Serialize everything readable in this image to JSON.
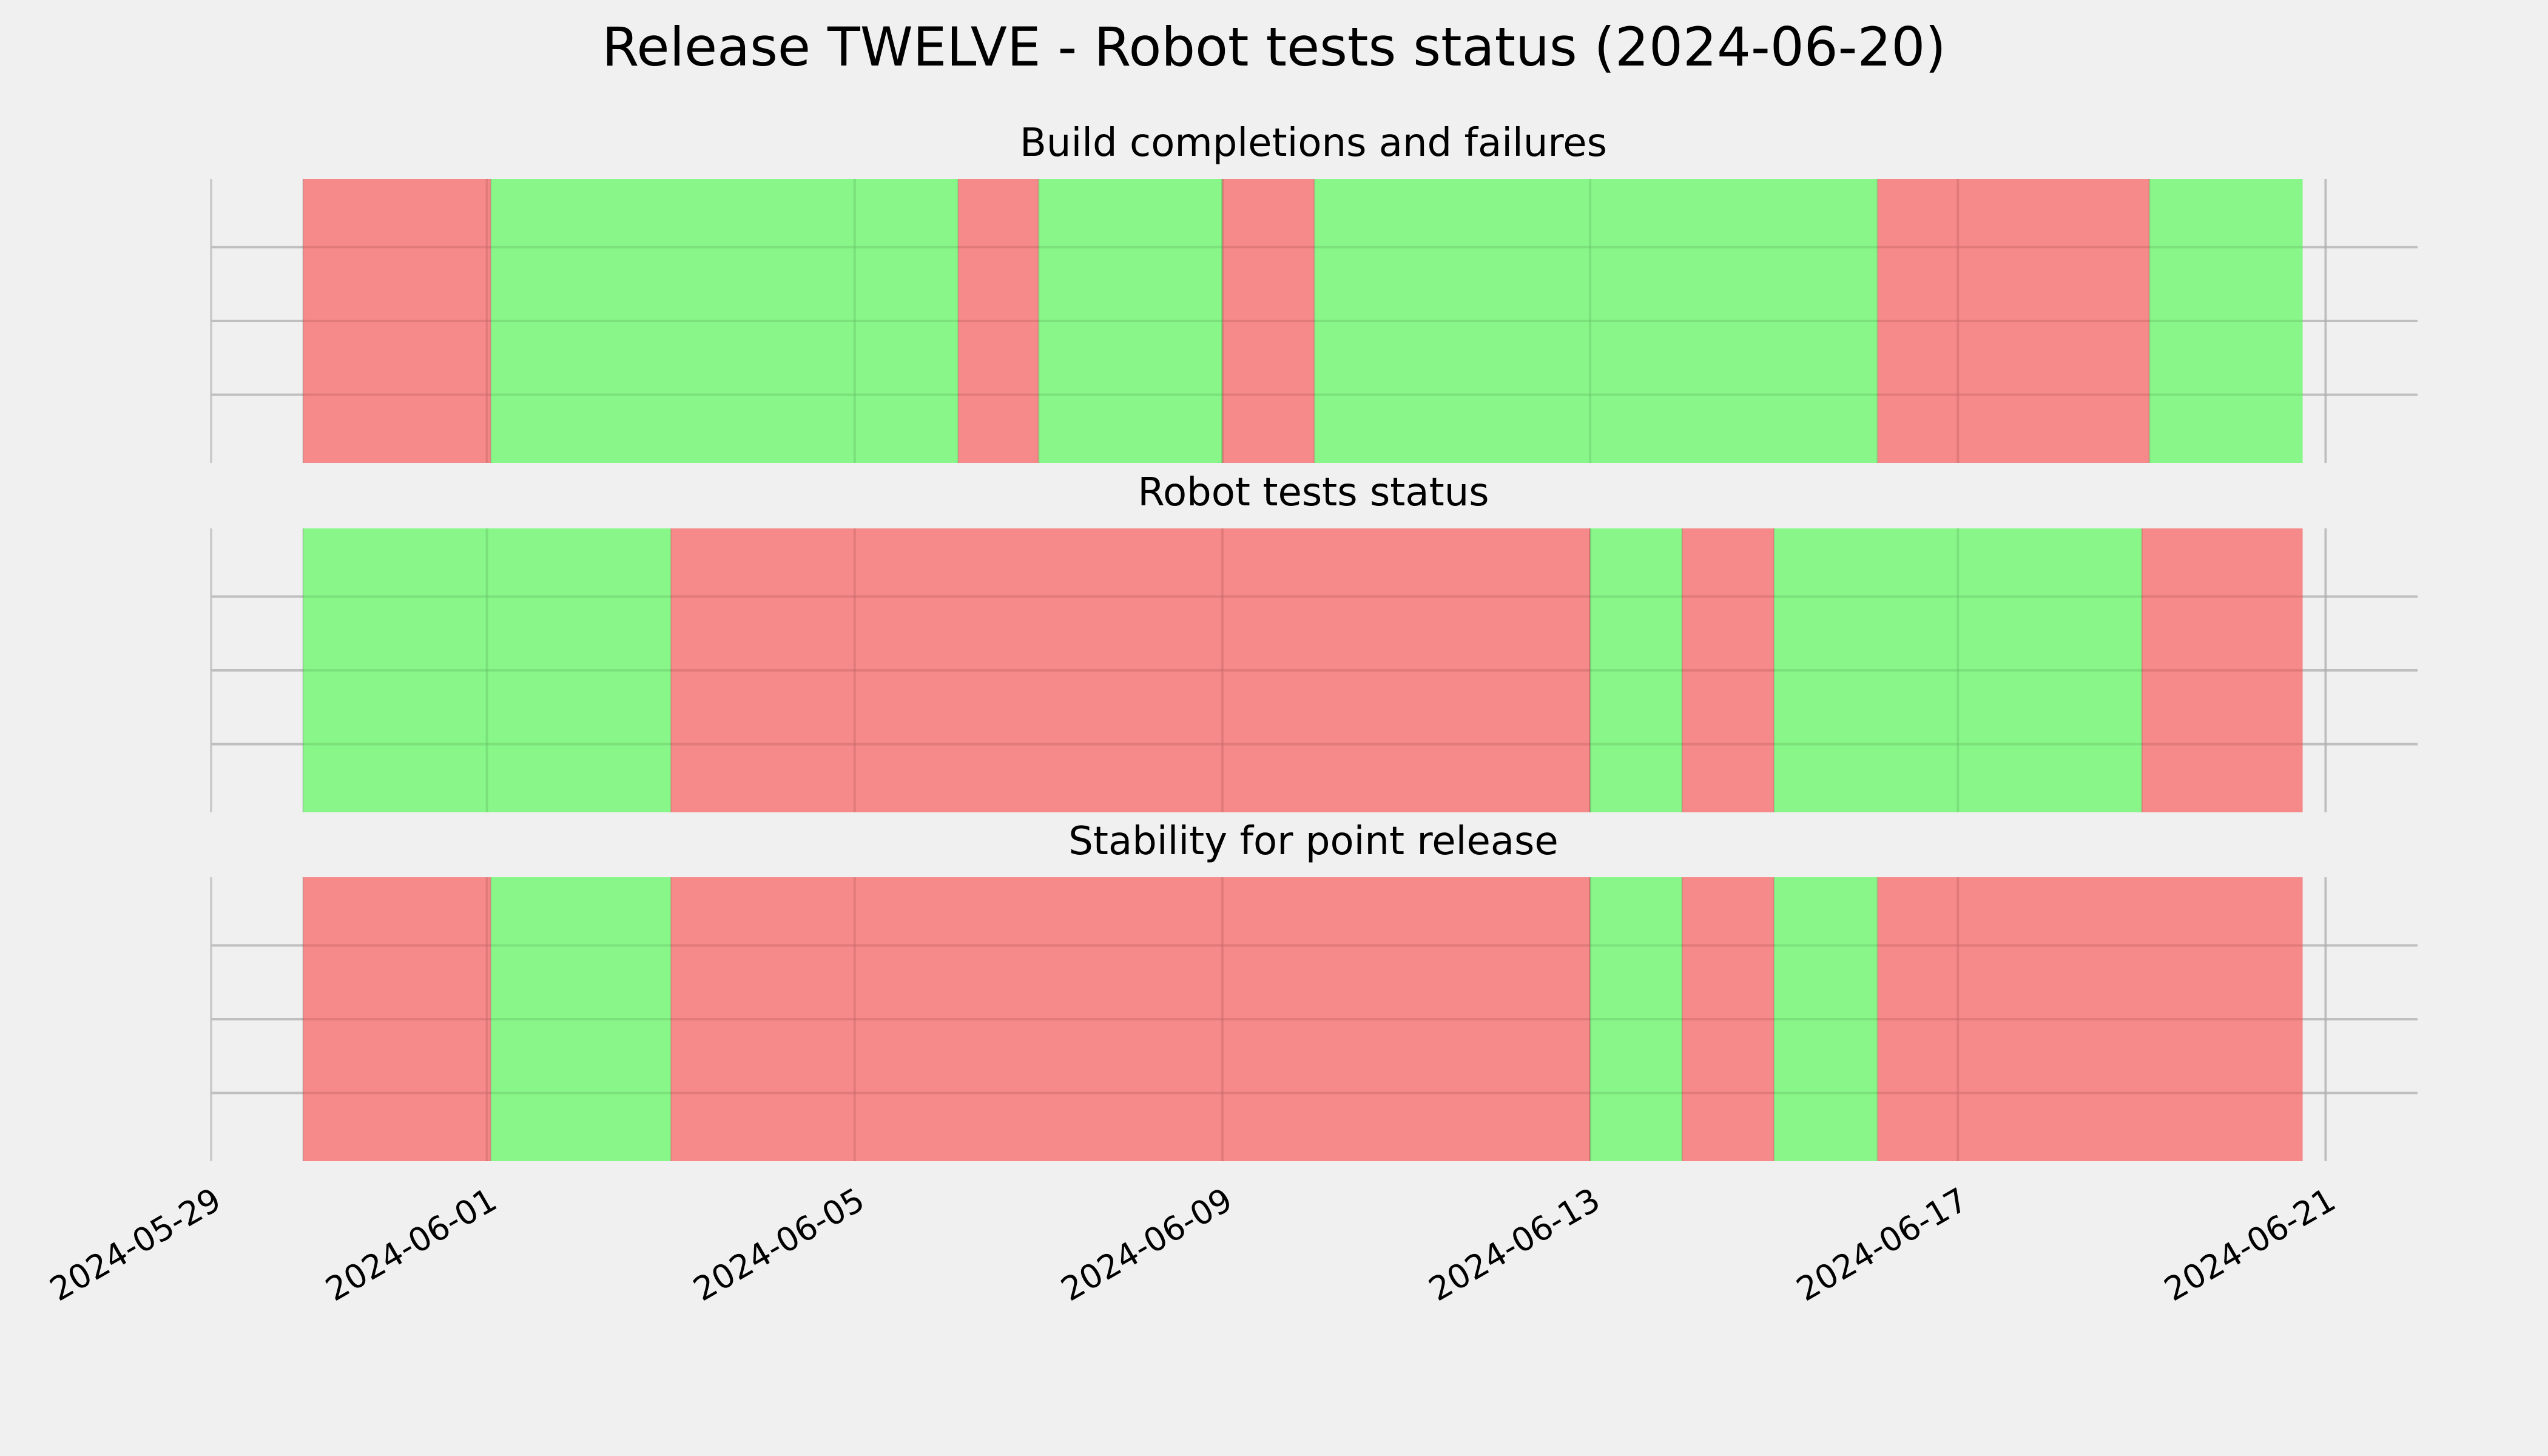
{
  "chart_data": {
    "type": "timeline",
    "title": "Release TWELVE - Robot tests status (2024-06-20)",
    "colors": {
      "pass": "#77f777",
      "fail": "#f77777",
      "background": "#f0f0f0",
      "grid": "#cbcbcb"
    },
    "xlim": [
      "2024-05-29",
      "2024-06-22"
    ],
    "xticks": [
      "2024-05-29",
      "2024-06-01",
      "2024-06-05",
      "2024-06-09",
      "2024-06-13",
      "2024-06-17",
      "2024-06-21"
    ],
    "grid": true,
    "panels": [
      {
        "title": "Build completions and failures",
        "segments": [
          {
            "start": "2024-05-30T00:00",
            "end": "2024-06-01T01:00",
            "status": "fail"
          },
          {
            "start": "2024-06-01T01:00",
            "end": "2024-06-06T03:00",
            "status": "pass"
          },
          {
            "start": "2024-06-06T03:00",
            "end": "2024-06-07T00:00",
            "status": "fail"
          },
          {
            "start": "2024-06-07T00:00",
            "end": "2024-06-09T00:00",
            "status": "pass"
          },
          {
            "start": "2024-06-09T00:00",
            "end": "2024-06-10T00:00",
            "status": "fail"
          },
          {
            "start": "2024-06-10T00:00",
            "end": "2024-06-16T03:00",
            "status": "pass"
          },
          {
            "start": "2024-06-16T03:00",
            "end": "2024-06-19T02:00",
            "status": "fail"
          },
          {
            "start": "2024-06-19T02:00",
            "end": "2024-06-20T18:00",
            "status": "pass"
          }
        ]
      },
      {
        "title": "Robot tests status",
        "segments": [
          {
            "start": "2024-05-30T00:00",
            "end": "2024-06-03T00:00",
            "status": "pass"
          },
          {
            "start": "2024-06-03T00:00",
            "end": "2024-06-13T00:00",
            "status": "fail"
          },
          {
            "start": "2024-06-13T00:00",
            "end": "2024-06-14T00:00",
            "status": "pass"
          },
          {
            "start": "2024-06-14T00:00",
            "end": "2024-06-15T00:00",
            "status": "fail"
          },
          {
            "start": "2024-06-15T00:00",
            "end": "2024-06-19T00:00",
            "status": "pass"
          },
          {
            "start": "2024-06-19T00:00",
            "end": "2024-06-20T18:00",
            "status": "fail"
          }
        ]
      },
      {
        "title": "Stability for point release",
        "segments": [
          {
            "start": "2024-05-30T00:00",
            "end": "2024-06-01T01:00",
            "status": "fail"
          },
          {
            "start": "2024-06-01T01:00",
            "end": "2024-06-03T00:00",
            "status": "pass"
          },
          {
            "start": "2024-06-03T00:00",
            "end": "2024-06-13T00:00",
            "status": "fail"
          },
          {
            "start": "2024-06-13T00:00",
            "end": "2024-06-14T00:00",
            "status": "pass"
          },
          {
            "start": "2024-06-14T00:00",
            "end": "2024-06-15T00:00",
            "status": "fail"
          },
          {
            "start": "2024-06-15T00:00",
            "end": "2024-06-16T03:00",
            "status": "pass"
          },
          {
            "start": "2024-06-16T03:00",
            "end": "2024-06-20T18:00",
            "status": "fail"
          }
        ]
      }
    ]
  }
}
